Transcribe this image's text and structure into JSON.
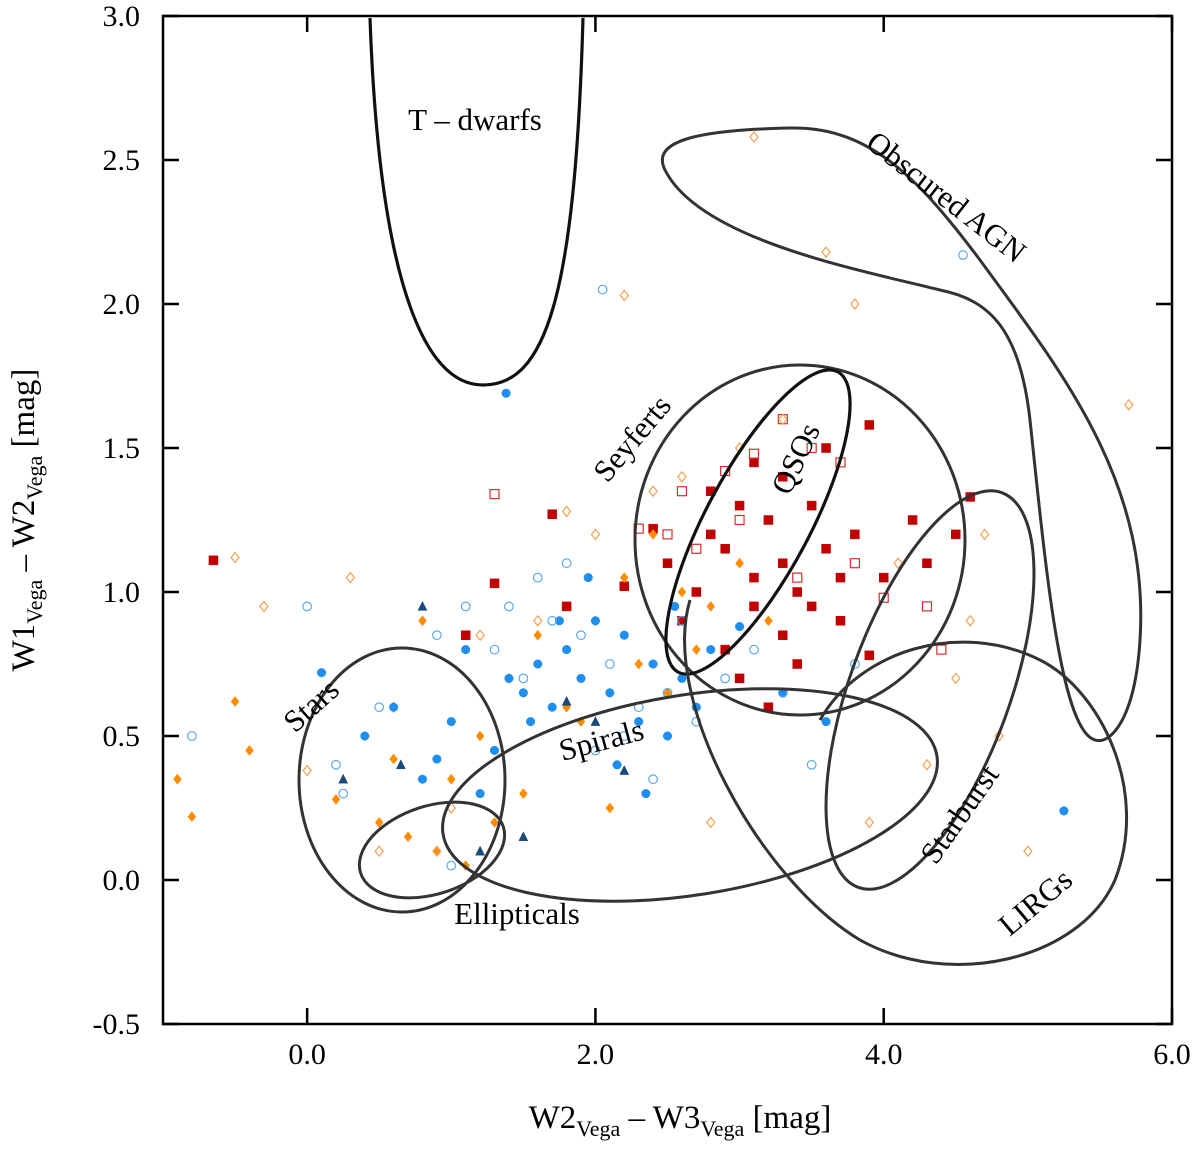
{
  "chart_data": {
    "type": "scatter",
    "xlabel": [
      "W2",
      "Vega",
      " – W3",
      "Vega",
      " [mag]"
    ],
    "ylabel": [
      "W1",
      "Vega",
      " – W2",
      "Vega",
      " [mag]"
    ],
    "xlim": [
      -1,
      6
    ],
    "ylim": [
      -0.5,
      3
    ],
    "xticks": [
      {
        "value": 0,
        "label": "0.0"
      },
      {
        "value": 2,
        "label": "2.0"
      },
      {
        "value": 4,
        "label": "4.0"
      },
      {
        "value": 6,
        "label": "6.0"
      }
    ],
    "yticks": [
      {
        "value": -0.5,
        "label": "-0.5"
      },
      {
        "value": 0,
        "label": "0.0"
      },
      {
        "value": 0.5,
        "label": "0.5"
      },
      {
        "value": 1,
        "label": "1.0"
      },
      {
        "value": 1.5,
        "label": "1.5"
      },
      {
        "value": 2,
        "label": "2.0"
      },
      {
        "value": 2.5,
        "label": "2.5"
      },
      {
        "value": 3,
        "label": "3.0"
      }
    ],
    "annotations": [
      "T – dwarfs",
      "Obscured AGN",
      "Seyferts",
      "QSOs",
      "Stars",
      "Spirals",
      "Ellipticals",
      "Starburst",
      "LIRGs"
    ],
    "series": [
      {
        "color": "#c00000",
        "marker": "square",
        "filled": true,
        "x": [
          2.5,
          2.7,
          2.8,
          2.9,
          3.0,
          3.1,
          3.2,
          3.3,
          3.4,
          3.5,
          3.6,
          3.7,
          2.6,
          2.9,
          3.1,
          3.3,
          3.5,
          3.8,
          4.0,
          4.3,
          4.5,
          4.6,
          3.9,
          2.4,
          2.2,
          1.8,
          1.7,
          -0.65,
          1.1,
          1.3,
          3.0,
          3.2,
          3.4,
          3.6,
          3.1,
          2.8,
          3.3,
          3.7,
          4.2,
          3.9
        ],
        "values": [
          1.1,
          1.0,
          1.2,
          1.15,
          1.3,
          1.05,
          1.25,
          1.1,
          1.0,
          0.95,
          1.15,
          1.05,
          0.9,
          0.8,
          0.95,
          0.85,
          1.3,
          1.2,
          1.05,
          1.1,
          1.2,
          1.33,
          1.58,
          1.22,
          1.02,
          0.95,
          1.27,
          1.11,
          0.85,
          1.03,
          0.7,
          0.6,
          0.75,
          1.5,
          1.45,
          1.35,
          1.4,
          0.9,
          1.25,
          0.78
        ]
      },
      {
        "color": "#d03030",
        "marker": "square",
        "filled": false,
        "x": [
          3.3,
          3.5,
          2.9,
          2.6,
          2.3,
          3.1,
          3.7,
          4.3,
          4.0,
          3.8,
          2.5,
          1.3,
          3.4,
          3.0,
          2.7,
          4.4
        ],
        "values": [
          1.6,
          1.5,
          1.42,
          1.35,
          1.22,
          1.48,
          1.45,
          0.95,
          0.98,
          1.1,
          1.2,
          1.34,
          1.05,
          1.25,
          1.15,
          0.8
        ]
      },
      {
        "color": "#ff8c00",
        "marker": "diamond",
        "filled": true,
        "x": [
          -0.9,
          -0.5,
          -0.4,
          0.2,
          0.5,
          0.7,
          0.9,
          1.0,
          1.2,
          1.4,
          1.6,
          1.8,
          2.0,
          2.2,
          2.4,
          2.6,
          2.8,
          3.0,
          1.1,
          0.8,
          1.5,
          2.1,
          2.3,
          2.7,
          0.6,
          1.9,
          1.3,
          -0.8,
          2.5,
          3.2
        ],
        "values": [
          0.35,
          0.62,
          0.45,
          0.28,
          0.2,
          0.15,
          0.1,
          0.35,
          0.5,
          0.7,
          0.85,
          0.6,
          0.9,
          1.05,
          1.2,
          1.0,
          0.95,
          1.1,
          0.05,
          0.9,
          0.3,
          0.25,
          0.75,
          0.8,
          0.42,
          0.55,
          0.2,
          0.22,
          0.65,
          0.9
        ]
      },
      {
        "color": "#f5a050",
        "marker": "diamond",
        "filled": false,
        "x": [
          -0.5,
          -0.3,
          0.3,
          0.6,
          0.9,
          1.2,
          1.6,
          2.0,
          2.4,
          2.6,
          3.0,
          3.3,
          3.8,
          4.1,
          4.5,
          4.8,
          5.0,
          5.7,
          3.1,
          3.6,
          4.3,
          0.0,
          2.8,
          1.8,
          4.7,
          3.9,
          2.2,
          1.0,
          4.6,
          0.5
        ],
        "values": [
          1.12,
          0.95,
          1.05,
          0.6,
          0.1,
          0.85,
          0.9,
          1.2,
          1.35,
          1.4,
          1.5,
          1.6,
          2.0,
          1.1,
          0.7,
          0.5,
          0.1,
          1.65,
          2.58,
          2.18,
          0.4,
          0.38,
          0.2,
          1.28,
          1.2,
          0.2,
          2.03,
          0.25,
          0.9,
          0.1
        ]
      },
      {
        "color": "#1e8ff0",
        "marker": "circle",
        "filled": true,
        "x": [
          0.1,
          0.4,
          0.6,
          0.8,
          1.0,
          1.2,
          1.4,
          1.5,
          1.6,
          1.7,
          1.8,
          1.9,
          2.0,
          2.1,
          2.2,
          2.3,
          2.4,
          2.5,
          2.6,
          2.7,
          1.3,
          1.55,
          1.75,
          1.95,
          2.15,
          2.35,
          2.55,
          3.3,
          3.6,
          1.38,
          5.25,
          0.9,
          1.1,
          2.8,
          3.0
        ],
        "values": [
          0.72,
          0.5,
          0.6,
          0.35,
          0.55,
          0.3,
          0.7,
          0.65,
          0.75,
          0.6,
          0.8,
          0.7,
          0.9,
          0.65,
          0.85,
          0.55,
          0.75,
          0.5,
          0.7,
          0.6,
          0.45,
          0.55,
          0.9,
          1.05,
          0.4,
          0.3,
          0.95,
          0.65,
          0.55,
          1.69,
          0.24,
          0.42,
          0.8,
          0.8,
          0.88
        ]
      },
      {
        "color": "#5aa8f0",
        "marker": "circle",
        "filled": false,
        "x": [
          -0.8,
          0.0,
          0.5,
          0.9,
          1.1,
          1.3,
          1.5,
          1.7,
          1.9,
          2.1,
          2.3,
          2.5,
          2.7,
          2.9,
          3.1,
          3.3,
          3.5,
          2.05,
          4.55,
          1.6,
          1.8,
          2.0,
          2.2,
          2.4,
          0.25,
          1.0,
          2.6,
          1.4,
          3.8,
          0.2
        ],
        "values": [
          0.5,
          0.95,
          0.6,
          0.85,
          0.95,
          0.8,
          0.7,
          0.9,
          0.85,
          0.75,
          0.6,
          0.65,
          0.55,
          0.7,
          0.8,
          0.65,
          0.4,
          2.05,
          2.17,
          1.05,
          1.1,
          0.45,
          0.5,
          0.35,
          0.3,
          0.05,
          0.9,
          0.95,
          0.75,
          0.4
        ]
      },
      {
        "color": "#1a4a7a",
        "marker": "triangle",
        "filled": true,
        "x": [
          0.8,
          0.25,
          0.65,
          1.2,
          1.5,
          1.8,
          2.2,
          2.0
        ],
        "values": [
          0.95,
          0.35,
          0.4,
          0.1,
          0.15,
          0.62,
          0.38,
          0.55
        ]
      }
    ]
  }
}
